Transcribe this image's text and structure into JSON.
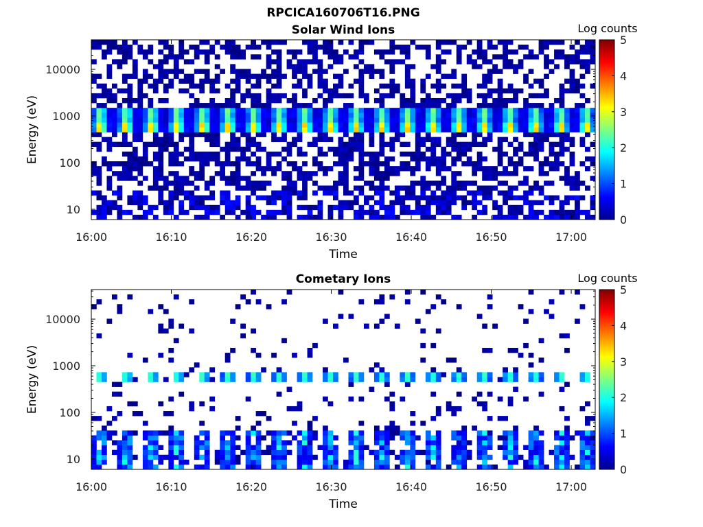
{
  "figure": {
    "title": "RPCICA160706T16.PNG"
  },
  "chart_data": [
    {
      "type": "heatmap",
      "title": "Solar Wind Ions",
      "xlabel": "Time",
      "ylabel": "Energy (eV)",
      "x_ticks": [
        "16:00",
        "16:10",
        "16:20",
        "16:30",
        "16:40",
        "16:50",
        "17:00"
      ],
      "y_ticks": [
        "10",
        "100",
        "1000",
        "10000"
      ],
      "y_scale": "log",
      "ylim": [
        6,
        43000
      ],
      "x_range": [
        "16:00",
        "17:03"
      ],
      "colorbar": {
        "label": "Log counts",
        "range": [
          0,
          5
        ],
        "ticks": [
          "0",
          "1",
          "2",
          "3",
          "4",
          "5"
        ]
      },
      "features": [
        {
          "energy_eV": [
            500,
            1300
          ],
          "log_counts_peak": 3.0,
          "pattern": "periodic peaks roughly every 3.2 min"
        },
        {
          "energy_eV": [
            8,
            25
          ],
          "log_counts": [
            0,
            1
          ],
          "pattern": "persistent low-level counts"
        },
        {
          "energy_eV": [
            30,
            40000
          ],
          "log_counts": [
            0,
            0.5
          ],
          "pattern": "dense scattered background"
        }
      ]
    },
    {
      "type": "heatmap",
      "title": "Cometary Ions",
      "xlabel": "Time",
      "ylabel": "Energy (eV)",
      "x_ticks": [
        "16:00",
        "16:10",
        "16:20",
        "16:30",
        "16:40",
        "16:50",
        "17:00"
      ],
      "y_ticks": [
        "10",
        "100",
        "1000",
        "10000"
      ],
      "y_scale": "log",
      "ylim": [
        6,
        43000
      ],
      "x_range": [
        "16:00",
        "17:03"
      ],
      "colorbar": {
        "label": "Log counts",
        "range": [
          0,
          5
        ],
        "ticks": [
          "0",
          "1",
          "2",
          "3",
          "4",
          "5"
        ]
      },
      "features": [
        {
          "energy_eV": [
            450,
            750
          ],
          "log_counts_peak": 2.0,
          "pattern": "periodic peaks roughly every 3.2 min"
        },
        {
          "energy_eV": [
            8,
            35
          ],
          "log_counts_peak": 2.0,
          "pattern": "periodic peaks roughly every 3.2 min"
        },
        {
          "energy_eV": [
            40,
            30000
          ],
          "log_counts": [
            0,
            0.5
          ],
          "pattern": "sparse scattered counts"
        }
      ]
    }
  ]
}
